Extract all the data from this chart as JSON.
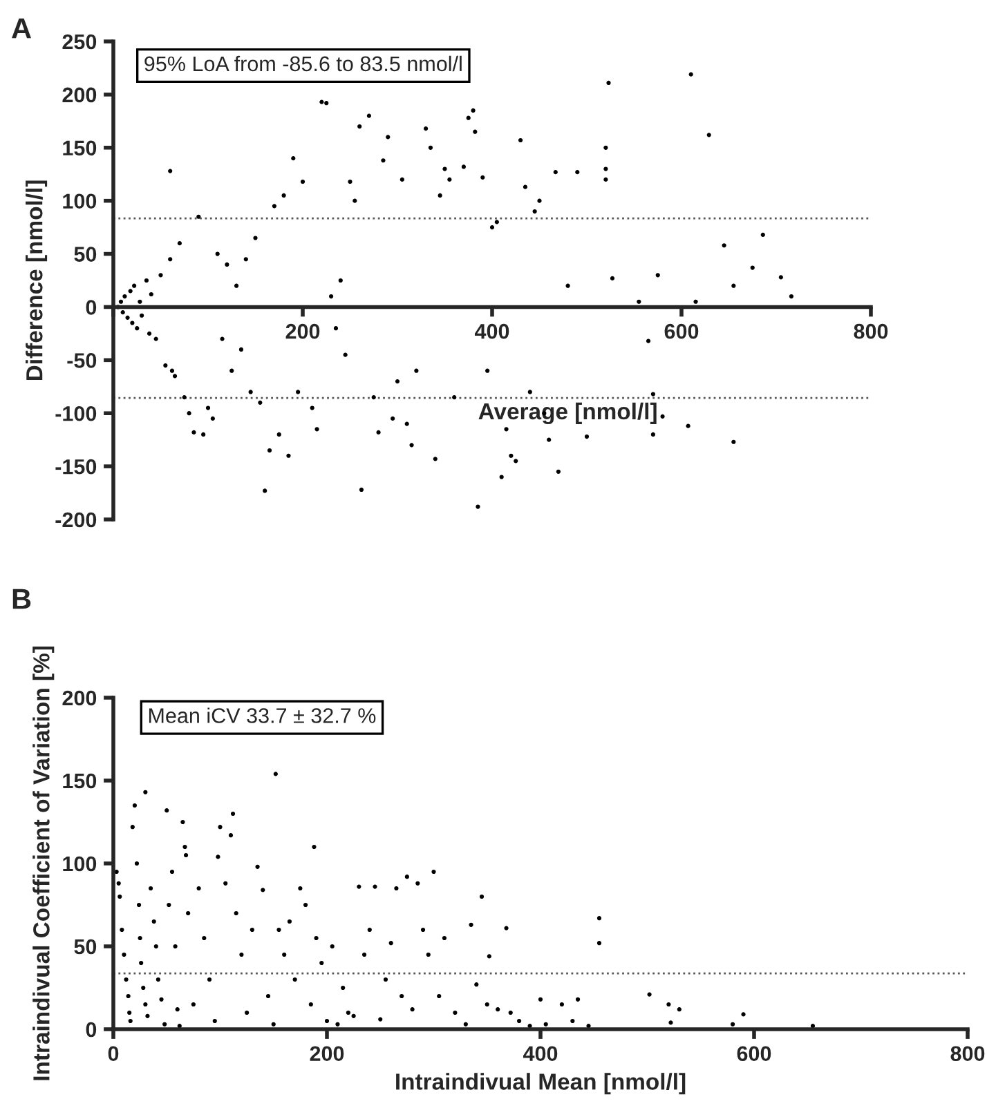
{
  "chart_data": [
    {
      "type": "scatter",
      "title": "A",
      "xlabel": "Average [nmol/l]",
      "ylabel": "Difference [nmol/l]",
      "annotations": [
        "95% LoA from -85.6 to 83.5 nmol/l"
      ],
      "xlim": [
        0,
        800
      ],
      "ylim": [
        -200,
        250
      ],
      "xticks": [
        {
          "value": 0,
          "label": null
        },
        200,
        400,
        600,
        800
      ],
      "yticks": [
        -200,
        -150,
        -100,
        -50,
        0,
        50,
        100,
        150,
        200,
        250
      ],
      "grid": false,
      "legend": false,
      "marker": "circle",
      "ref_lines": [
        {
          "axis": "y",
          "value": 83.5,
          "line_style": "dotted"
        },
        {
          "axis": "y",
          "value": -85.6,
          "line_style": "dotted"
        }
      ],
      "series": [
        {
          "color": "#000000",
          "x": [
            5,
            8,
            10,
            12,
            15,
            18,
            20,
            22,
            25,
            28,
            30,
            35,
            38,
            40,
            45,
            50,
            55,
            60,
            62,
            65,
            70,
            75,
            80,
            60,
            85,
            90,
            95,
            100,
            105,
            110,
            115,
            120,
            125,
            130,
            135,
            140,
            145,
            150,
            155,
            160,
            165,
            170,
            175,
            180,
            185,
            190,
            195,
            200,
            210,
            215,
            220,
            225,
            230,
            235,
            240,
            245,
            250,
            255,
            260,
            262,
            270,
            275,
            280,
            285,
            290,
            295,
            300,
            305,
            310,
            315,
            320,
            330,
            335,
            340,
            345,
            350,
            355,
            360,
            370,
            375,
            380,
            382,
            385,
            390,
            395,
            400,
            405,
            410,
            415,
            420,
            425,
            430,
            435,
            440,
            445,
            450,
            455,
            460,
            467,
            470,
            480,
            490,
            500,
            520,
            520,
            520,
            523,
            527,
            555,
            565,
            570,
            570,
            575,
            580,
            607,
            610,
            615,
            629,
            645,
            655,
            655,
            675,
            686,
            705,
            716
          ],
          "values": [
            0,
            5,
            -5,
            10,
            -10,
            15,
            -15,
            20,
            -20,
            5,
            -8,
            25,
            -25,
            12,
            -30,
            30,
            -55,
            45,
            -60,
            -65,
            60,
            -85,
            -100,
            128,
            -118,
            85,
            -120,
            -95,
            -105,
            50,
            -30,
            40,
            -60,
            20,
            -40,
            45,
            -80,
            65,
            -90,
            -173,
            -135,
            95,
            -120,
            105,
            -140,
            140,
            -80,
            118,
            -95,
            -115,
            193,
            192,
            10,
            -20,
            25,
            -45,
            118,
            100,
            170,
            -172,
            180,
            -85,
            -118,
            138,
            160,
            -105,
            -70,
            120,
            -110,
            -130,
            -60,
            168,
            150,
            -143,
            105,
            130,
            120,
            -85,
            132,
            178,
            185,
            165,
            -188,
            122,
            -60,
            75,
            80,
            -160,
            -115,
            -140,
            -145,
            157,
            113,
            -80,
            90,
            100,
            -100,
            -125,
            127,
            -155,
            20,
            127,
            -122,
            150,
            130,
            120,
            211,
            27,
            5,
            -32,
            -82,
            -120,
            30,
            -103,
            -112,
            219,
            5,
            162,
            58,
            -127,
            20,
            37,
            68,
            28,
            10
          ]
        }
      ]
    },
    {
      "type": "scatter",
      "title": "B",
      "xlabel": "Intraindivual Mean [nmol/l]",
      "ylabel": "Intraindivual Coefficient of Variation [%]",
      "annotations": [
        "Mean iCV 33.7 ± 32.7 %"
      ],
      "xlim": [
        0,
        800
      ],
      "ylim": [
        0,
        200
      ],
      "xticks": [
        0,
        200,
        400,
        600,
        800
      ],
      "yticks": [
        0,
        50,
        100,
        150,
        200
      ],
      "grid": false,
      "legend": false,
      "marker": "circle",
      "ref_lines": [
        {
          "axis": "y",
          "value": 33.7,
          "line_style": "dotted"
        }
      ],
      "series": [
        {
          "color": "#000000",
          "x": [
            3,
            5,
            6,
            8,
            10,
            12,
            14,
            15,
            16,
            18,
            20,
            22,
            24,
            25,
            26,
            28,
            30,
            30,
            32,
            35,
            38,
            40,
            42,
            45,
            48,
            50,
            52,
            55,
            58,
            60,
            62,
            65,
            67,
            68,
            70,
            75,
            80,
            85,
            90,
            95,
            98,
            100,
            105,
            110,
            112,
            115,
            120,
            125,
            130,
            135,
            140,
            145,
            150,
            152,
            155,
            160,
            165,
            170,
            175,
            180,
            185,
            188,
            190,
            195,
            200,
            205,
            210,
            215,
            220,
            225,
            230,
            235,
            240,
            245,
            250,
            255,
            260,
            265,
            270,
            275,
            280,
            285,
            290,
            295,
            300,
            305,
            310,
            320,
            330,
            335,
            340,
            345,
            350,
            352,
            360,
            368,
            372,
            380,
            390,
            400,
            405,
            420,
            430,
            435,
            445,
            455,
            455,
            502,
            520,
            522,
            530,
            580,
            590,
            655
          ],
          "values": [
            95,
            88,
            80,
            60,
            45,
            30,
            20,
            10,
            5,
            122,
            135,
            100,
            75,
            55,
            40,
            25,
            143,
            15,
            8,
            85,
            65,
            50,
            30,
            18,
            3,
            132,
            75,
            95,
            50,
            12,
            2,
            125,
            110,
            105,
            70,
            15,
            85,
            55,
            30,
            5,
            104,
            122,
            88,
            117,
            130,
            70,
            45,
            10,
            60,
            98,
            84,
            20,
            3,
            154,
            60,
            45,
            65,
            30,
            85,
            75,
            15,
            110,
            55,
            40,
            5,
            50,
            3,
            25,
            10,
            8,
            86,
            45,
            60,
            86,
            6,
            30,
            52,
            85,
            20,
            92,
            12,
            88,
            60,
            45,
            95,
            20,
            55,
            10,
            3,
            63,
            27,
            80,
            15,
            44,
            12,
            61,
            10,
            5,
            2,
            18,
            3,
            15,
            5,
            18,
            2,
            52,
            67,
            21,
            15,
            4,
            12,
            3,
            9,
            2
          ]
        }
      ]
    }
  ]
}
